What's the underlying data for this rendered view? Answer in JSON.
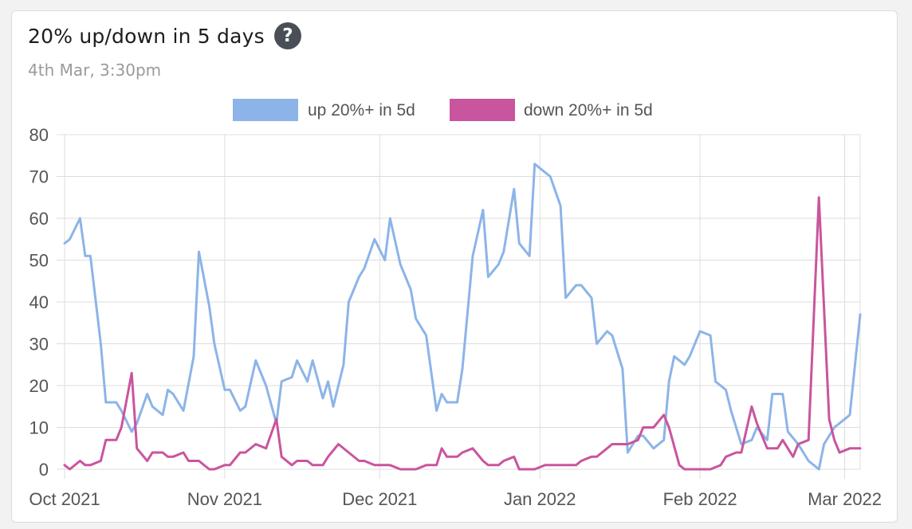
{
  "card": {
    "title": "20% up/down in 5 days",
    "subtitle": "4th Mar, 3:30pm"
  },
  "chart_data": {
    "type": "line",
    "title": "20% up/down in 5 days",
    "subtitle": "4th Mar, 3:30pm",
    "ylim": [
      0,
      80
    ],
    "yticks": [
      0,
      10,
      20,
      30,
      40,
      50,
      60,
      70,
      80
    ],
    "xlim": [
      "2021-10-01",
      "2022-03-04"
    ],
    "xticks": [
      {
        "date": "2021-10-01",
        "label": "Oct 2021"
      },
      {
        "date": "2021-11-01",
        "label": "Nov 2021"
      },
      {
        "date": "2021-12-01",
        "label": "Dec 2021"
      },
      {
        "date": "2022-01-01",
        "label": "Jan 2022"
      },
      {
        "date": "2022-02-01",
        "label": "Feb 2022"
      },
      {
        "date": "2022-03-01",
        "label": "Mar 2022"
      }
    ],
    "grid": true,
    "legend_position": "top",
    "series": [
      {
        "name": "up 20%+ in 5d",
        "color": "#8cb4e8",
        "points": [
          [
            "2021-10-01",
            54
          ],
          [
            "2021-10-02",
            55
          ],
          [
            "2021-10-04",
            60
          ],
          [
            "2021-10-05",
            51
          ],
          [
            "2021-10-06",
            51
          ],
          [
            "2021-10-08",
            30
          ],
          [
            "2021-10-09",
            16
          ],
          [
            "2021-10-11",
            16
          ],
          [
            "2021-10-12",
            14
          ],
          [
            "2021-10-14",
            9
          ],
          [
            "2021-10-15",
            11
          ],
          [
            "2021-10-17",
            18
          ],
          [
            "2021-10-18",
            15
          ],
          [
            "2021-10-20",
            13
          ],
          [
            "2021-10-21",
            19
          ],
          [
            "2021-10-22",
            18
          ],
          [
            "2021-10-24",
            14
          ],
          [
            "2021-10-26",
            27
          ],
          [
            "2021-10-27",
            52
          ],
          [
            "2021-10-29",
            39
          ],
          [
            "2021-10-30",
            30
          ],
          [
            "2021-11-01",
            19
          ],
          [
            "2021-11-02",
            19
          ],
          [
            "2021-11-04",
            14
          ],
          [
            "2021-11-05",
            15
          ],
          [
            "2021-11-07",
            26
          ],
          [
            "2021-11-09",
            20
          ],
          [
            "2021-11-11",
            11
          ],
          [
            "2021-11-12",
            21
          ],
          [
            "2021-11-14",
            22
          ],
          [
            "2021-11-15",
            26
          ],
          [
            "2021-11-17",
            21
          ],
          [
            "2021-11-18",
            26
          ],
          [
            "2021-11-20",
            17
          ],
          [
            "2021-11-21",
            21
          ],
          [
            "2021-11-22",
            15
          ],
          [
            "2021-11-24",
            25
          ],
          [
            "2021-11-25",
            40
          ],
          [
            "2021-11-27",
            46
          ],
          [
            "2021-11-28",
            48
          ],
          [
            "2021-11-30",
            55
          ],
          [
            "2021-12-02",
            50
          ],
          [
            "2021-12-03",
            60
          ],
          [
            "2021-12-05",
            49
          ],
          [
            "2021-12-07",
            43
          ],
          [
            "2021-12-08",
            36
          ],
          [
            "2021-12-10",
            32
          ],
          [
            "2021-12-12",
            14
          ],
          [
            "2021-12-13",
            18
          ],
          [
            "2021-12-14",
            16
          ],
          [
            "2021-12-16",
            16
          ],
          [
            "2021-12-17",
            24
          ],
          [
            "2021-12-19",
            51
          ],
          [
            "2021-12-21",
            62
          ],
          [
            "2021-12-22",
            46
          ],
          [
            "2021-12-24",
            49
          ],
          [
            "2021-12-25",
            52
          ],
          [
            "2021-12-27",
            67
          ],
          [
            "2021-12-28",
            54
          ],
          [
            "2021-12-30",
            51
          ],
          [
            "2021-12-31",
            73
          ],
          [
            "2022-01-02",
            71
          ],
          [
            "2022-01-03",
            70
          ],
          [
            "2022-01-05",
            63
          ],
          [
            "2022-01-06",
            41
          ],
          [
            "2022-01-08",
            44
          ],
          [
            "2022-01-09",
            44
          ],
          [
            "2022-01-11",
            41
          ],
          [
            "2022-01-12",
            30
          ],
          [
            "2022-01-14",
            33
          ],
          [
            "2022-01-15",
            32
          ],
          [
            "2022-01-17",
            24
          ],
          [
            "2022-01-18",
            4
          ],
          [
            "2022-01-20",
            8
          ],
          [
            "2022-01-21",
            8
          ],
          [
            "2022-01-23",
            5
          ],
          [
            "2022-01-25",
            7
          ],
          [
            "2022-01-26",
            21
          ],
          [
            "2022-01-27",
            27
          ],
          [
            "2022-01-29",
            25
          ],
          [
            "2022-01-30",
            27
          ],
          [
            "2022-02-01",
            33
          ],
          [
            "2022-02-03",
            32
          ],
          [
            "2022-02-04",
            21
          ],
          [
            "2022-02-06",
            19
          ],
          [
            "2022-02-07",
            14
          ],
          [
            "2022-02-09",
            6
          ],
          [
            "2022-02-11",
            7
          ],
          [
            "2022-02-12",
            10
          ],
          [
            "2022-02-14",
            7
          ],
          [
            "2022-02-15",
            18
          ],
          [
            "2022-02-17",
            18
          ],
          [
            "2022-02-18",
            9
          ],
          [
            "2022-02-20",
            6
          ],
          [
            "2022-02-22",
            2
          ],
          [
            "2022-02-24",
            0
          ],
          [
            "2022-02-25",
            6
          ],
          [
            "2022-02-27",
            10
          ],
          [
            "2022-02-28",
            11
          ],
          [
            "2022-03-02",
            13
          ],
          [
            "2022-03-04",
            37
          ]
        ]
      },
      {
        "name": "down 20%+ in 5d",
        "color": "#c9559e",
        "points": [
          [
            "2021-10-01",
            1
          ],
          [
            "2021-10-02",
            0
          ],
          [
            "2021-10-04",
            2
          ],
          [
            "2021-10-05",
            1
          ],
          [
            "2021-10-06",
            1
          ],
          [
            "2021-10-08",
            2
          ],
          [
            "2021-10-09",
            7
          ],
          [
            "2021-10-11",
            7
          ],
          [
            "2021-10-12",
            10
          ],
          [
            "2021-10-14",
            23
          ],
          [
            "2021-10-15",
            5
          ],
          [
            "2021-10-17",
            2
          ],
          [
            "2021-10-18",
            4
          ],
          [
            "2021-10-20",
            4
          ],
          [
            "2021-10-21",
            3
          ],
          [
            "2021-10-22",
            3
          ],
          [
            "2021-10-24",
            4
          ],
          [
            "2021-10-25",
            2
          ],
          [
            "2021-10-27",
            2
          ],
          [
            "2021-10-29",
            0
          ],
          [
            "2021-10-30",
            0
          ],
          [
            "2021-11-01",
            1
          ],
          [
            "2021-11-02",
            1
          ],
          [
            "2021-11-04",
            4
          ],
          [
            "2021-11-05",
            4
          ],
          [
            "2021-11-07",
            6
          ],
          [
            "2021-11-09",
            5
          ],
          [
            "2021-11-11",
            12
          ],
          [
            "2021-11-12",
            3
          ],
          [
            "2021-11-14",
            1
          ],
          [
            "2021-11-15",
            2
          ],
          [
            "2021-11-17",
            2
          ],
          [
            "2021-11-18",
            1
          ],
          [
            "2021-11-20",
            1
          ],
          [
            "2021-11-21",
            3
          ],
          [
            "2021-11-23",
            6
          ],
          [
            "2021-11-25",
            4
          ],
          [
            "2021-11-27",
            2
          ],
          [
            "2021-11-28",
            2
          ],
          [
            "2021-11-30",
            1
          ],
          [
            "2021-12-02",
            1
          ],
          [
            "2021-12-03",
            1
          ],
          [
            "2021-12-05",
            0
          ],
          [
            "2021-12-07",
            0
          ],
          [
            "2021-12-08",
            0
          ],
          [
            "2021-12-10",
            1
          ],
          [
            "2021-12-12",
            1
          ],
          [
            "2021-12-13",
            5
          ],
          [
            "2021-12-14",
            3
          ],
          [
            "2021-12-16",
            3
          ],
          [
            "2021-12-17",
            4
          ],
          [
            "2021-12-19",
            5
          ],
          [
            "2021-12-21",
            2
          ],
          [
            "2021-12-22",
            1
          ],
          [
            "2021-12-24",
            1
          ],
          [
            "2021-12-25",
            2
          ],
          [
            "2021-12-27",
            3
          ],
          [
            "2021-12-28",
            0
          ],
          [
            "2021-12-30",
            0
          ],
          [
            "2021-12-31",
            0
          ],
          [
            "2022-01-02",
            1
          ],
          [
            "2022-01-03",
            1
          ],
          [
            "2022-01-05",
            1
          ],
          [
            "2022-01-06",
            1
          ],
          [
            "2022-01-08",
            1
          ],
          [
            "2022-01-09",
            2
          ],
          [
            "2022-01-11",
            3
          ],
          [
            "2022-01-12",
            3
          ],
          [
            "2022-01-14",
            5
          ],
          [
            "2022-01-15",
            6
          ],
          [
            "2022-01-17",
            6
          ],
          [
            "2022-01-18",
            6
          ],
          [
            "2022-01-20",
            7
          ],
          [
            "2022-01-21",
            10
          ],
          [
            "2022-01-23",
            10
          ],
          [
            "2022-01-25",
            13
          ],
          [
            "2022-01-26",
            10
          ],
          [
            "2022-01-28",
            1
          ],
          [
            "2022-01-29",
            0
          ],
          [
            "2022-01-31",
            0
          ],
          [
            "2022-02-02",
            0
          ],
          [
            "2022-02-03",
            0
          ],
          [
            "2022-02-05",
            1
          ],
          [
            "2022-02-06",
            3
          ],
          [
            "2022-02-08",
            4
          ],
          [
            "2022-02-09",
            4
          ],
          [
            "2022-02-11",
            15
          ],
          [
            "2022-02-12",
            11
          ],
          [
            "2022-02-14",
            5
          ],
          [
            "2022-02-16",
            5
          ],
          [
            "2022-02-17",
            7
          ],
          [
            "2022-02-19",
            3
          ],
          [
            "2022-02-20",
            6
          ],
          [
            "2022-02-22",
            7
          ],
          [
            "2022-02-24",
            65
          ],
          [
            "2022-02-26",
            12
          ],
          [
            "2022-02-27",
            7
          ],
          [
            "2022-02-28",
            4
          ],
          [
            "2022-03-02",
            5
          ],
          [
            "2022-03-04",
            5
          ]
        ]
      }
    ]
  }
}
